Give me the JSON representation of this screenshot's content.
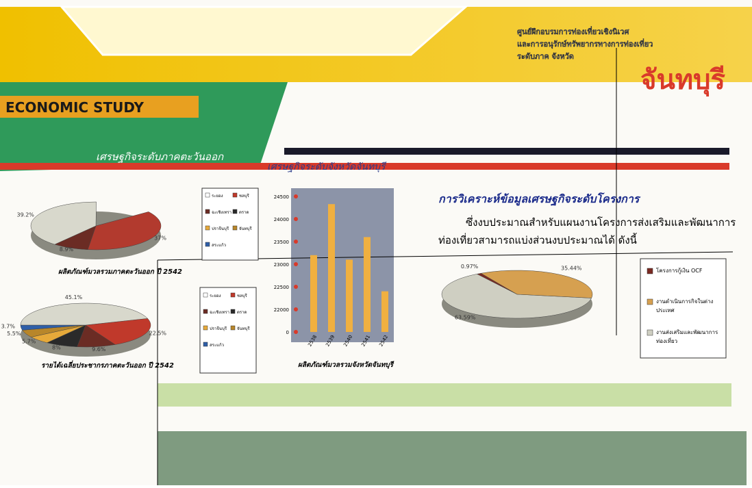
{
  "header": {
    "lines": [
      "ศูนย์ฝึกอบรมการท่องเที่ยวเชิงนิเวศ",
      "และการอนุรักษ์ทรัพยากรทางการท่องเที่ยว",
      "ระดับภาค จังหวัด"
    ],
    "province": "จันทบุรี"
  },
  "section_title": "ECONOMIC STUDY",
  "regional_heading": "เศรษฐกิจระดับภาคตะวันออก",
  "provincial_heading": "เศรษฐกิจระดับจังหวัดจันทบุรี",
  "legend_provinces": [
    "ระยอง",
    "ชลบุรี",
    "ฉะเชิงเทรา",
    "ตราด",
    "ปราจีนบุรี",
    "จันทบุรี",
    "สระแก้ว"
  ],
  "pie_gpp": {
    "caption": "ผลิตภัณฑ์มวลรวมภาคตะวันออก ปี 2542",
    "slices": [
      {
        "label": "37%",
        "value": 37,
        "color": "#b23a2e"
      },
      {
        "label": "8.9%",
        "value": 8.9,
        "color": "#6b2c24"
      },
      {
        "label": "39.2%",
        "value": 39.2,
        "color": "#d8d8cc"
      }
    ]
  },
  "pie_income": {
    "caption": "รายได้เฉลี่ยประชากรภาคตะวันออก ปี 2542",
    "slices": [
      {
        "label": "22.5%",
        "value": 22.5,
        "color": "#c0392b"
      },
      {
        "label": "9.6%",
        "value": 9.6,
        "color": "#6b2c24"
      },
      {
        "label": "8%",
        "value": 8,
        "color": "#2a2a2a"
      },
      {
        "label": "5.7%",
        "value": 5.7,
        "color": "#e6a93a"
      },
      {
        "label": "5.5%",
        "value": 5.5,
        "color": "#b8862a"
      },
      {
        "label": "3.7%",
        "value": 3.7,
        "color": "#2f5fa8"
      },
      {
        "label": "45.1%",
        "value": 45.1,
        "color": "#d8d8cc"
      }
    ]
  },
  "bar_chart": {
    "caption": "ผลิตภัณฑ์มวลรวมจังหวัดจันทบุรี",
    "categories": [
      "2538",
      "2539",
      "2540",
      "2541",
      "2542"
    ],
    "values": [
      23200,
      24330,
      23100,
      23600,
      22400
    ],
    "color": "#f0b040",
    "yticks": [
      0,
      22000,
      22500,
      23000,
      23500,
      24000,
      24500
    ]
  },
  "analysis": {
    "heading": "การวิเคราะห์ข้อมูลเศรษฐกิจระดับโครงการ",
    "paragraph": "ซึ่งงบประมาณสำหรับแผนงานโครงการส่งเสริมและพัฒนาการท่องเที่ยวสามารถแบ่งส่วนงบประมาณได้ ดังนี้"
  },
  "pie_budget": {
    "slices": [
      {
        "label": "63.59%",
        "value": 63.59,
        "color": "#cfcfc2",
        "legend": "งานส่งเสริมและพัฒนาการท่องเที่ยว"
      },
      {
        "label": "0.97%",
        "value": 0.97,
        "color": "#7a2a22",
        "legend": "โครงการกู้เงิน OCF"
      },
      {
        "label": "35.44%",
        "value": 35.44,
        "color": "#d6a050",
        "legend": "งานดำเนินการกิจในต่างประเทศ"
      }
    ]
  }
}
